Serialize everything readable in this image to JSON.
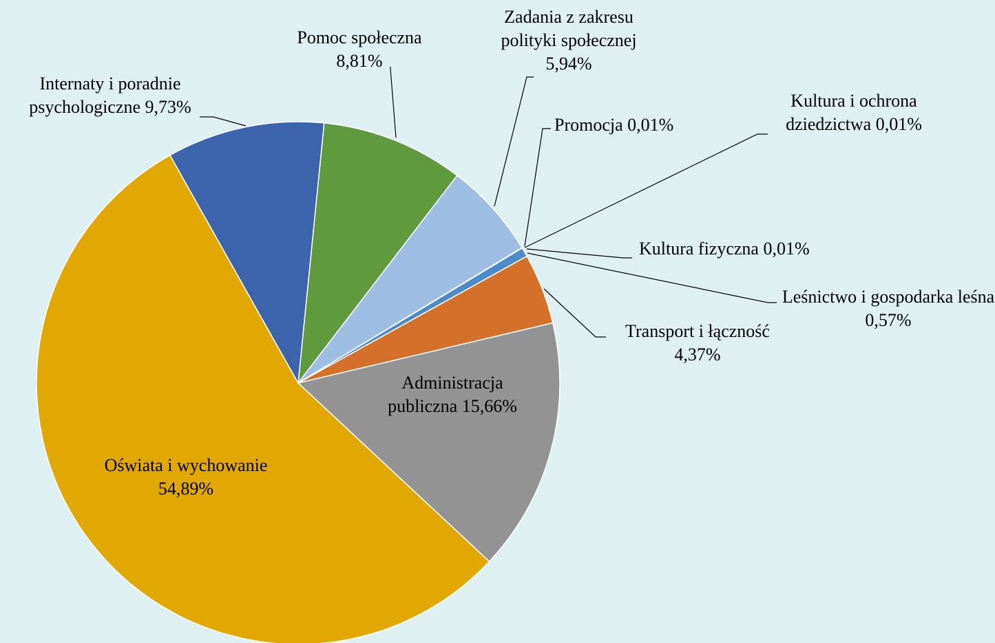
{
  "chart_data": {
    "type": "pie",
    "categories": [
      "Pomoc społeczna",
      "Zadania z zakresu polityki społecznej",
      "Promocja",
      "Kultura i ochrona dziedzictwa",
      "Kultura fizyczna",
      "Leśnictwo i gospodarka leśna",
      "Transport i łączność",
      "Administracja publiczna",
      "Oświata i wychowanie",
      "Internaty i poradnie psychologiczne"
    ],
    "values": [
      8.81,
      5.94,
      0.01,
      0.01,
      0.01,
      0.57,
      4.37,
      15.66,
      54.89,
      9.73
    ],
    "value_labels": [
      "8,81%",
      "5,94%",
      "0,01%",
      "0,01%",
      "0,01%",
      "0,57%",
      "4,37%",
      "15,66%",
      "54,89%",
      "9,73%"
    ],
    "colors": [
      "#5f9a3e",
      "#9dbde3",
      "#264478",
      "#9e480e",
      "#636363",
      "#4d8ac8",
      "#d4702a",
      "#939393",
      "#e0a800",
      "#3c64ad"
    ]
  }
}
